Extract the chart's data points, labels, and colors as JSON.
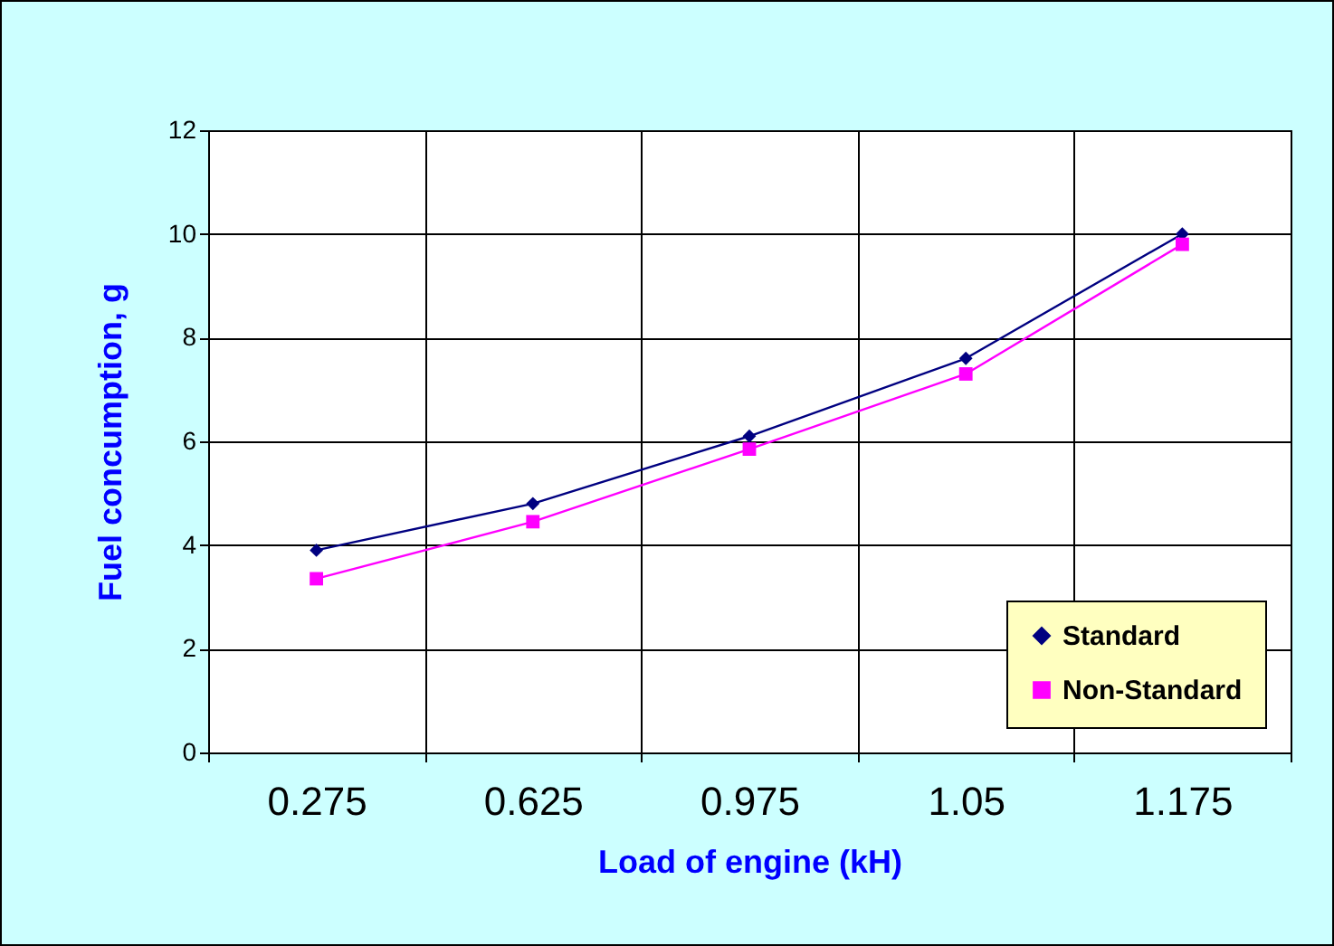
{
  "chart_data": {
    "type": "line",
    "xlabel": "Load of engine (kH)",
    "ylabel": "Fuel concumption, g",
    "categories": [
      "0.275",
      "0.625",
      "0.975",
      "1.05",
      "1.175"
    ],
    "series": [
      {
        "name": "Standard",
        "color": "#000080",
        "marker": "diamond",
        "values": [
          3.9,
          4.8,
          6.1,
          7.6,
          10.0
        ]
      },
      {
        "name": "Non-Standard",
        "color": "#ff00ff",
        "marker": "square",
        "values": [
          3.35,
          4.45,
          5.85,
          7.3,
          9.8
        ]
      }
    ],
    "ylim": [
      0,
      12
    ],
    "yticks": [
      0,
      2,
      4,
      6,
      8,
      10,
      12
    ],
    "grid": true,
    "legend": "bottom right"
  }
}
